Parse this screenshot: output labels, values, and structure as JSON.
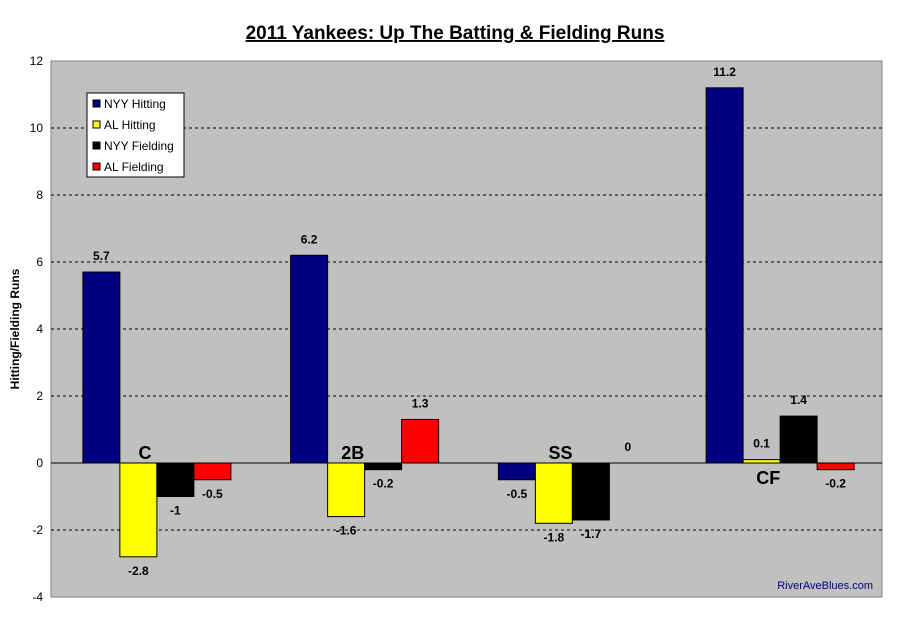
{
  "chart_data": {
    "type": "bar",
    "title": "2011 Yankees: Up The Batting & Fielding Runs",
    "xlabel": "",
    "ylabel": "Hitting/Fielding Runs",
    "ylim": [
      -4,
      12
    ],
    "yticks": [
      -4,
      -2,
      0,
      2,
      4,
      6,
      8,
      10,
      12
    ],
    "grid": true,
    "legend_position": "top-left",
    "categories": [
      "C",
      "2B",
      "SS",
      "CF"
    ],
    "series": [
      {
        "name": "NYY Hitting",
        "color": "#000080",
        "values": [
          5.7,
          6.2,
          -0.5,
          11.2
        ]
      },
      {
        "name": "AL Hitting",
        "color": "#FFFF00",
        "values": [
          -2.8,
          -1.6,
          -1.8,
          0.1
        ]
      },
      {
        "name": "NYY Fielding",
        "color": "#000000",
        "values": [
          -1,
          -0.2,
          -1.7,
          1.4
        ]
      },
      {
        "name": "AL Fielding",
        "color": "#FF0000",
        "values": [
          -0.5,
          1.3,
          0,
          -0.2
        ]
      }
    ],
    "watermark": "RiverAveBlues.com",
    "plot_background": "#C0C0C0",
    "watermark_color": "#000080"
  }
}
